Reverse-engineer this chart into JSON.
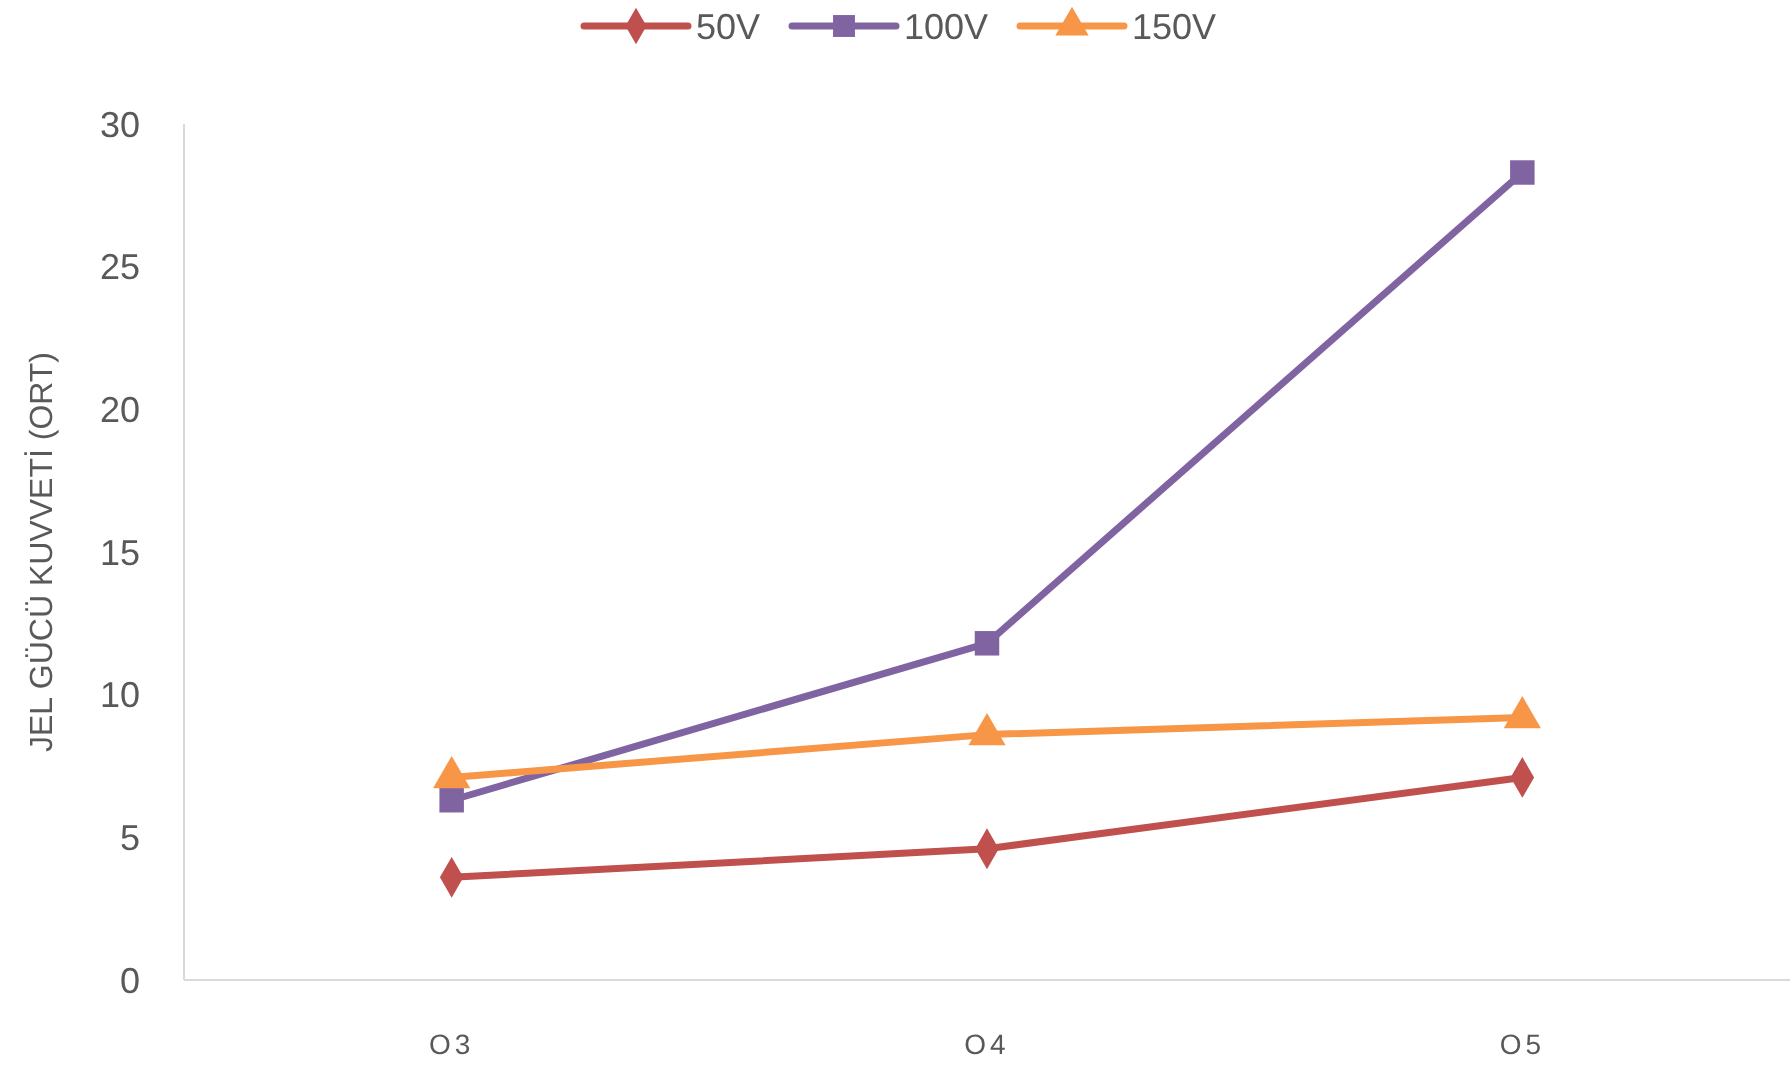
{
  "chart_data": {
    "type": "line",
    "ylabel": "JEL GÜCÜ KUVVETİ (ORT)",
    "categories": [
      "O3",
      "O4",
      "O5"
    ],
    "ylim": [
      0,
      30
    ],
    "yticks": [
      0,
      5,
      10,
      15,
      20,
      25,
      30
    ],
    "grid": false,
    "legend": "top",
    "series": [
      {
        "name": "50V",
        "color": "#c0504d",
        "marker": "diamond",
        "values": [
          3.6,
          4.6,
          7.1
        ]
      },
      {
        "name": "100V",
        "color": "#8064a2",
        "marker": "square",
        "values": [
          6.3,
          11.8,
          28.3
        ]
      },
      {
        "name": "150V",
        "color": "#f79646",
        "marker": "triangle",
        "values": [
          7.1,
          8.6,
          9.2
        ]
      }
    ]
  }
}
